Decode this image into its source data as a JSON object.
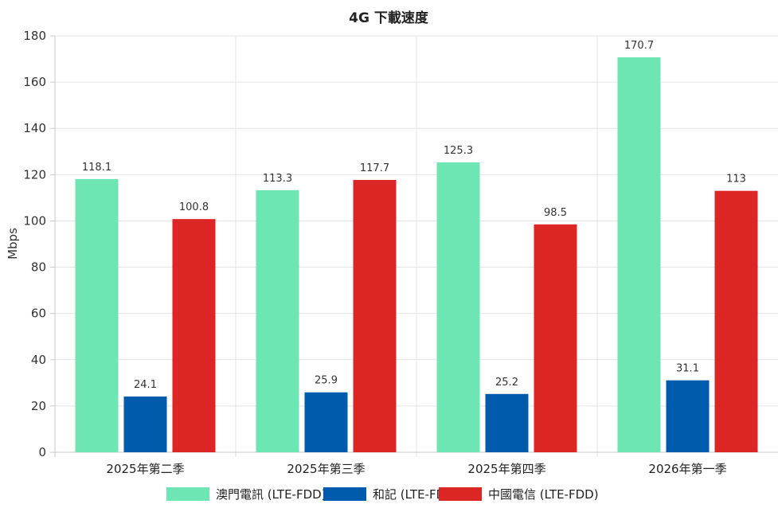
{
  "chart_data": {
    "type": "bar",
    "title": "4G 下載速度",
    "ylabel": "Mbps",
    "xlabel": "",
    "ylim": [
      0,
      180
    ],
    "yticks": [
      0,
      20,
      40,
      60,
      80,
      100,
      120,
      140,
      160,
      180
    ],
    "categories": [
      "2025年第二季",
      "2025年第三季",
      "2025年第四季",
      "2026年第一季"
    ],
    "series": [
      {
        "name": "澳門電訊 (LTE-FDD)",
        "color": "#6ee6b4",
        "values": [
          118.1,
          113.3,
          125.3,
          170.7
        ]
      },
      {
        "name": "和記 (LTE-FDD)",
        "color": "#005bac",
        "values": [
          24.1,
          25.9,
          25.2,
          31.1
        ]
      },
      {
        "name": "中國電信 (LTE-FDD)",
        "color": "#dc2626",
        "values": [
          100.8,
          117.7,
          98.5,
          113
        ]
      }
    ],
    "grid": true,
    "legend_position": "bottom"
  }
}
